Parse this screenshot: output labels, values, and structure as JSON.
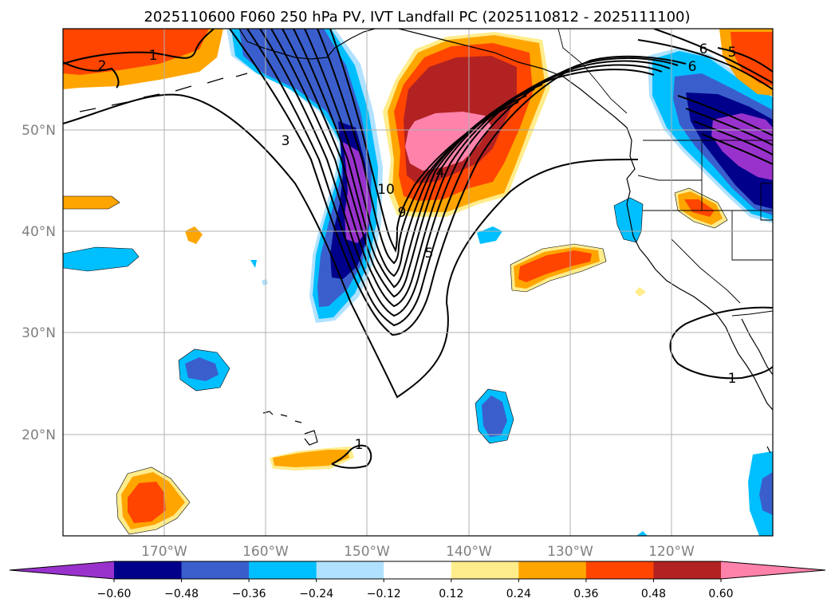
{
  "chart_data": {
    "type": "heatmap",
    "title": "2025110600 F060 250 hPa PV, IVT Landfall PC (2025110812 - 2025111100)",
    "projection": "map",
    "lon_range": [
      -180,
      -110
    ],
    "lat_range": [
      10,
      60
    ],
    "x_ticks": [
      {
        "lon": -170,
        "label": "170°W"
      },
      {
        "lon": -160,
        "label": "160°W"
      },
      {
        "lon": -150,
        "label": "150°W"
      },
      {
        "lon": -140,
        "label": "140°W"
      },
      {
        "lon": -130,
        "label": "130°W"
      },
      {
        "lon": -120,
        "label": "120°W"
      }
    ],
    "y_ticks": [
      {
        "lat": 20,
        "label": "20°N"
      },
      {
        "lat": 30,
        "label": "30°N"
      },
      {
        "lat": 40,
        "label": "40°N"
      },
      {
        "lat": 50,
        "label": "50°N"
      }
    ],
    "grid": true,
    "colorbar": {
      "orientation": "horizontal",
      "extend": "both",
      "boundaries": [
        -0.6,
        -0.48,
        -0.36,
        -0.24,
        -0.12,
        0.12,
        0.24,
        0.36,
        0.48,
        0.6
      ],
      "tick_labels": [
        "−0.60",
        "−0.48",
        "−0.36",
        "−0.24",
        "−0.12",
        "0.12",
        "0.24",
        "0.36",
        "0.48",
        "0.60"
      ],
      "colors": [
        "#9932cc",
        "#00008b",
        "#3a5fcd",
        "#00bfff",
        "#b0e2ff",
        "#ffffff",
        "#ffec8b",
        "#ffa500",
        "#ff4500",
        "#b22222",
        "#ff82ab"
      ]
    },
    "shaded_features": [
      {
        "name": "trough-negative-core",
        "center": [
          -151,
          43
        ],
        "min_value": -0.66
      },
      {
        "name": "ridge-positive-core",
        "center": [
          -140,
          49
        ],
        "max_value": 0.66
      },
      {
        "name": "pacific-northwest-negative",
        "center": [
          -115,
          51
        ],
        "min_value": -0.66
      },
      {
        "name": "subtropical-positive",
        "center": [
          -133,
          36
        ],
        "max_value": 0.42
      }
    ],
    "contour_labels": [
      {
        "label": "2",
        "lon": -176,
        "lat": 56.2
      },
      {
        "label": "1",
        "lon": -171,
        "lat": 57.2
      },
      {
        "label": "3",
        "lon": -158,
        "lat": 49.3
      },
      {
        "label": "10",
        "lon": -149,
        "lat": 43.5
      },
      {
        "label": "9",
        "lon": -146.8,
        "lat": 41.8
      },
      {
        "label": "5",
        "lon": -144,
        "lat": 37.8
      },
      {
        "label": "4",
        "lon": -140.5,
        "lat": 46.3
      },
      {
        "label": "6",
        "lon": -118,
        "lat": 58.2
      },
      {
        "label": "6",
        "lon": -119,
        "lat": 56.2
      },
      {
        "label": "5",
        "lon": -116.1,
        "lat": 57.6
      },
      {
        "label": "1",
        "lon": -114,
        "lat": 25.3
      },
      {
        "label": "1",
        "lon": -149.6,
        "lat": 19.0
      }
    ]
  }
}
